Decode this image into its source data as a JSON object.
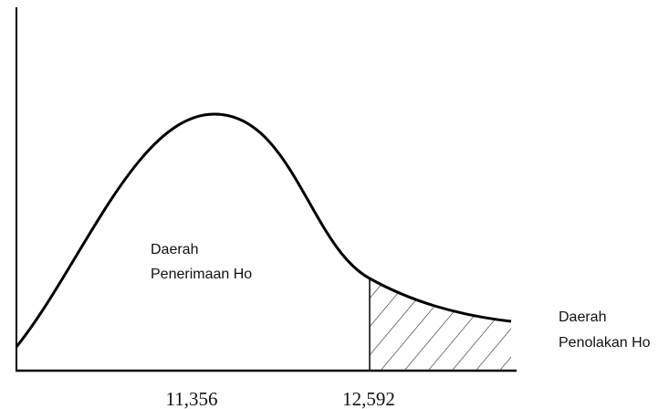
{
  "regions": [
    {
      "label_line1": "Daerah",
      "label_line2": "Penerimaan Ho"
    },
    {
      "label_line1": "Daerah",
      "label_line2": "Penolakan Ho"
    }
  ],
  "axis_labels": [
    "11,356",
    "12,592"
  ]
}
